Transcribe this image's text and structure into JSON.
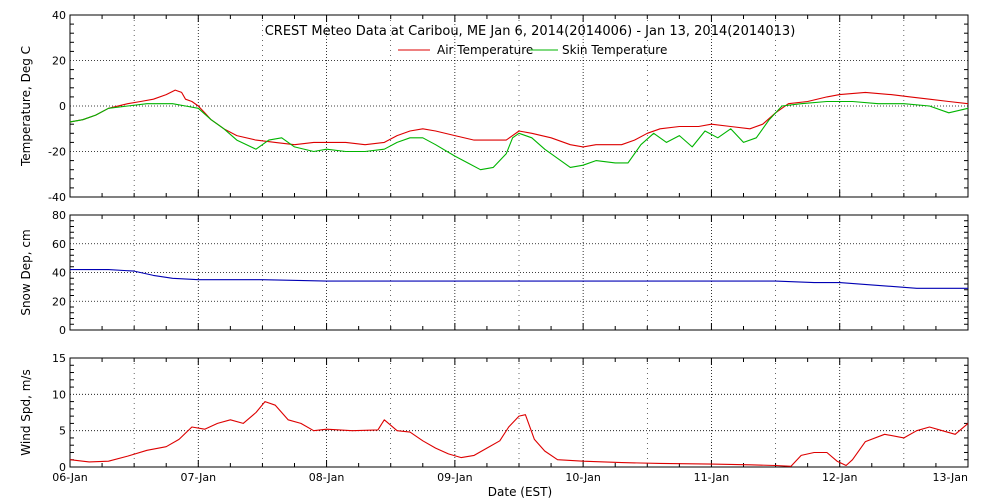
{
  "figure": {
    "title": "CREST Meteo Data at Caribou, ME   Jan  6, 2014(2014006) - Jan 13, 2014(2014013)",
    "xlabel": "Date (EST)",
    "x_tick_labels": [
      "06-Jan",
      "07-Jan",
      "08-Jan",
      "09-Jan",
      "10-Jan",
      "11-Jan",
      "12-Jan",
      "13-Jan"
    ],
    "x_range_days": [
      0,
      7
    ]
  },
  "colors": {
    "air": "#dd0000",
    "skin": "#00b400",
    "snow": "#0000b4",
    "wind": "#dd0000",
    "grid": "#000000"
  },
  "chart_data": [
    {
      "type": "line",
      "panel": "temperature",
      "ylabel": "Temperature, Deg C",
      "ylim": [
        -40,
        40
      ],
      "yticks": [
        -40,
        -20,
        0,
        20,
        40
      ],
      "grid": true,
      "legend": "top-center",
      "x_unit": "days since 06-Jan 00:00 EST",
      "series": [
        {
          "name": "Air Temperature",
          "color_key": "air",
          "points": [
            [
              0,
              -7
            ],
            [
              0.1,
              -6
            ],
            [
              0.2,
              -4
            ],
            [
              0.3,
              -1
            ],
            [
              0.45,
              1
            ],
            [
              0.55,
              2
            ],
            [
              0.65,
              3
            ],
            [
              0.75,
              5
            ],
            [
              0.82,
              7
            ],
            [
              0.87,
              6
            ],
            [
              0.9,
              3
            ],
            [
              0.95,
              2
            ],
            [
              1.0,
              0
            ],
            [
              1.05,
              -3
            ],
            [
              1.1,
              -6
            ],
            [
              1.15,
              -8
            ],
            [
              1.2,
              -10
            ],
            [
              1.3,
              -13
            ],
            [
              1.45,
              -15
            ],
            [
              1.6,
              -16
            ],
            [
              1.75,
              -17
            ],
            [
              1.9,
              -16
            ],
            [
              2.0,
              -16
            ],
            [
              2.15,
              -16
            ],
            [
              2.3,
              -17
            ],
            [
              2.45,
              -16
            ],
            [
              2.55,
              -13
            ],
            [
              2.65,
              -11
            ],
            [
              2.75,
              -10
            ],
            [
              2.85,
              -11
            ],
            [
              3.0,
              -13
            ],
            [
              3.15,
              -15
            ],
            [
              3.3,
              -15
            ],
            [
              3.4,
              -15
            ],
            [
              3.45,
              -13
            ],
            [
              3.5,
              -11
            ],
            [
              3.6,
              -12
            ],
            [
              3.75,
              -14
            ],
            [
              3.9,
              -17
            ],
            [
              4.0,
              -18
            ],
            [
              4.1,
              -17
            ],
            [
              4.3,
              -17
            ],
            [
              4.4,
              -15
            ],
            [
              4.5,
              -12
            ],
            [
              4.6,
              -10
            ],
            [
              4.75,
              -9
            ],
            [
              4.9,
              -9
            ],
            [
              5.0,
              -8
            ],
            [
              5.15,
              -9
            ],
            [
              5.3,
              -10
            ],
            [
              5.4,
              -8
            ],
            [
              5.5,
              -3
            ],
            [
              5.6,
              1
            ],
            [
              5.75,
              2
            ],
            [
              5.9,
              4
            ],
            [
              6.0,
              5
            ],
            [
              6.2,
              6
            ],
            [
              6.4,
              5
            ],
            [
              6.55,
              4
            ],
            [
              6.7,
              3
            ],
            [
              6.85,
              2
            ],
            [
              7.0,
              1
            ]
          ]
        },
        {
          "name": "Skin Temperature",
          "color_key": "skin",
          "points": [
            [
              0,
              -7
            ],
            [
              0.1,
              -6
            ],
            [
              0.2,
              -4
            ],
            [
              0.3,
              -1
            ],
            [
              0.45,
              0
            ],
            [
              0.6,
              1
            ],
            [
              0.8,
              1
            ],
            [
              0.9,
              0
            ],
            [
              1.0,
              -1
            ],
            [
              1.1,
              -6
            ],
            [
              1.2,
              -10
            ],
            [
              1.3,
              -15
            ],
            [
              1.45,
              -19
            ],
            [
              1.55,
              -15
            ],
            [
              1.65,
              -14
            ],
            [
              1.75,
              -18
            ],
            [
              1.9,
              -20
            ],
            [
              2.0,
              -19
            ],
            [
              2.15,
              -20
            ],
            [
              2.3,
              -20
            ],
            [
              2.45,
              -19
            ],
            [
              2.55,
              -16
            ],
            [
              2.65,
              -14
            ],
            [
              2.75,
              -14
            ],
            [
              2.85,
              -17
            ],
            [
              3.0,
              -22
            ],
            [
              3.1,
              -25
            ],
            [
              3.2,
              -28
            ],
            [
              3.3,
              -27
            ],
            [
              3.4,
              -21
            ],
            [
              3.45,
              -14
            ],
            [
              3.5,
              -12
            ],
            [
              3.6,
              -14
            ],
            [
              3.7,
              -19
            ],
            [
              3.8,
              -23
            ],
            [
              3.9,
              -27
            ],
            [
              4.0,
              -26
            ],
            [
              4.1,
              -24
            ],
            [
              4.25,
              -25
            ],
            [
              4.35,
              -25
            ],
            [
              4.45,
              -17
            ],
            [
              4.55,
              -12
            ],
            [
              4.65,
              -16
            ],
            [
              4.75,
              -13
            ],
            [
              4.85,
              -18
            ],
            [
              4.95,
              -11
            ],
            [
              5.05,
              -14
            ],
            [
              5.15,
              -10
            ],
            [
              5.25,
              -16
            ],
            [
              5.35,
              -14
            ],
            [
              5.45,
              -6
            ],
            [
              5.55,
              0
            ],
            [
              5.7,
              1
            ],
            [
              5.9,
              2
            ],
            [
              6.1,
              2
            ],
            [
              6.3,
              1
            ],
            [
              6.5,
              1
            ],
            [
              6.7,
              0
            ],
            [
              6.85,
              -3
            ],
            [
              7.0,
              -1
            ]
          ]
        }
      ]
    },
    {
      "type": "line",
      "panel": "snow",
      "ylabel": "Snow Dep, cm",
      "ylim": [
        0,
        80
      ],
      "yticks": [
        0,
        20,
        40,
        60,
        80
      ],
      "grid": true,
      "x_unit": "days since 06-Jan 00:00 EST",
      "series": [
        {
          "color_key": "snow",
          "points": [
            [
              0,
              42
            ],
            [
              0.3,
              42
            ],
            [
              0.5,
              41
            ],
            [
              0.65,
              38
            ],
            [
              0.8,
              36
            ],
            [
              1.0,
              35
            ],
            [
              1.5,
              35
            ],
            [
              2.0,
              34
            ],
            [
              3.0,
              34
            ],
            [
              4.0,
              34
            ],
            [
              5.0,
              34
            ],
            [
              5.5,
              34
            ],
            [
              5.8,
              33
            ],
            [
              6.0,
              33
            ],
            [
              6.3,
              31
            ],
            [
              6.6,
              29
            ],
            [
              7.0,
              29
            ]
          ]
        }
      ]
    },
    {
      "type": "line",
      "panel": "wind",
      "ylabel": "Wind Spd, m/s",
      "ylim": [
        0,
        15
      ],
      "yticks": [
        0,
        5,
        10,
        15
      ],
      "grid": true,
      "x_unit": "days since 06-Jan 00:00 EST",
      "series": [
        {
          "color_key": "wind",
          "points": [
            [
              0,
              1
            ],
            [
              0.15,
              0.7
            ],
            [
              0.3,
              0.8
            ],
            [
              0.45,
              1.5
            ],
            [
              0.6,
              2.3
            ],
            [
              0.75,
              2.8
            ],
            [
              0.85,
              3.8
            ],
            [
              0.95,
              5.5
            ],
            [
              1.05,
              5.2
            ],
            [
              1.15,
              6.0
            ],
            [
              1.25,
              6.5
            ],
            [
              1.35,
              6.0
            ],
            [
              1.45,
              7.5
            ],
            [
              1.52,
              9.0
            ],
            [
              1.6,
              8.5
            ],
            [
              1.7,
              6.5
            ],
            [
              1.8,
              6.0
            ],
            [
              1.9,
              5.0
            ],
            [
              2.0,
              5.2
            ],
            [
              2.2,
              5.0
            ],
            [
              2.4,
              5.1
            ],
            [
              2.45,
              6.5
            ],
            [
              2.55,
              5.0
            ],
            [
              2.65,
              4.8
            ],
            [
              2.75,
              3.6
            ],
            [
              2.85,
              2.6
            ],
            [
              2.95,
              1.8
            ],
            [
              3.05,
              1.3
            ],
            [
              3.15,
              1.6
            ],
            [
              3.25,
              2.6
            ],
            [
              3.35,
              3.6
            ],
            [
              3.42,
              5.5
            ],
            [
              3.5,
              7.0
            ],
            [
              3.55,
              7.2
            ],
            [
              3.62,
              3.8
            ],
            [
              3.7,
              2.2
            ],
            [
              3.8,
              1.0
            ],
            [
              4.0,
              0.8
            ],
            [
              4.3,
              0.6
            ],
            [
              4.6,
              0.5
            ],
            [
              5.0,
              0.4
            ],
            [
              5.3,
              0.3
            ],
            [
              5.5,
              0.2
            ],
            [
              5.62,
              0.1
            ],
            [
              5.7,
              1.6
            ],
            [
              5.8,
              2.0
            ],
            [
              5.9,
              2.0
            ],
            [
              5.98,
              0.8
            ],
            [
              6.05,
              0.2
            ],
            [
              6.1,
              1.0
            ],
            [
              6.2,
              3.5
            ],
            [
              6.35,
              4.5
            ],
            [
              6.5,
              4.0
            ],
            [
              6.6,
              5.0
            ],
            [
              6.7,
              5.5
            ],
            [
              6.8,
              5.0
            ],
            [
              6.9,
              4.5
            ],
            [
              7.0,
              6.0
            ]
          ]
        }
      ]
    }
  ]
}
